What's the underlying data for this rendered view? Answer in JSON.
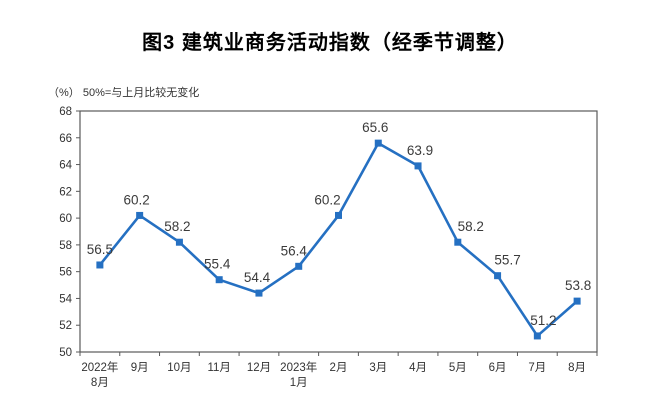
{
  "header": {
    "title": "图3 建筑业商务活动指数（经季节调整）"
  },
  "chart_data": {
    "type": "line",
    "title": "图3 建筑业商务活动指数（经季节调整）",
    "unit_note": "（%）  50%=与上月比较无变化",
    "categories": [
      "2022年8月",
      "9月",
      "10月",
      "11月",
      "12月",
      "2023年1月",
      "2月",
      "3月",
      "4月",
      "5月",
      "6月",
      "7月",
      "8月"
    ],
    "category_label_lines": [
      [
        "2022年",
        "8月"
      ],
      [
        "9月"
      ],
      [
        "10月"
      ],
      [
        "11月"
      ],
      [
        "12月"
      ],
      [
        "2023年",
        "1月"
      ],
      [
        "2月"
      ],
      [
        "3月"
      ],
      [
        "4月"
      ],
      [
        "5月"
      ],
      [
        "6月"
      ],
      [
        "7月"
      ],
      [
        "8月"
      ]
    ],
    "values": [
      56.5,
      60.2,
      58.2,
      55.4,
      54.4,
      56.4,
      60.2,
      65.6,
      63.9,
      58.2,
      55.7,
      51.2,
      53.8
    ],
    "data_labels": [
      "56.5",
      "60.2",
      "58.2",
      "55.4",
      "54.4",
      "56.4",
      "60.2",
      "65.6",
      "63.9",
      "58.2",
      "55.7",
      "51.2",
      "53.8"
    ],
    "ylim": [
      50,
      68
    ],
    "ytick_step": 2,
    "yticks": [
      50,
      52,
      54,
      56,
      58,
      60,
      62,
      64,
      66,
      68
    ],
    "grid": false,
    "legend_position": "none",
    "marker": "square",
    "colors": {
      "line": "#2570C2",
      "marker": "#2570C2",
      "data_label": "#3B3B3B",
      "axis": "#595959",
      "tick_label": "#333333",
      "title": "#000000"
    },
    "label_dx": [
      0,
      -3,
      -2,
      -2,
      -2,
      -5,
      -11,
      -3,
      2,
      13,
      10,
      6,
      1
    ]
  }
}
